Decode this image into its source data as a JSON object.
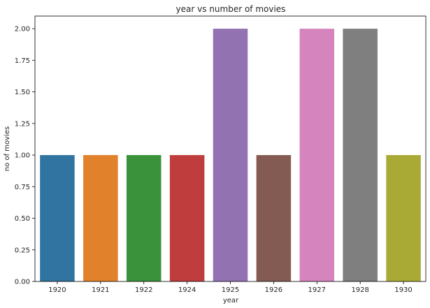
{
  "chart_data": {
    "type": "bar",
    "title": "year vs number of movies",
    "xlabel": "year",
    "ylabel": "no of movies",
    "categories": [
      "1920",
      "1921",
      "1922",
      "1924",
      "1925",
      "1926",
      "1927",
      "1928",
      "1930"
    ],
    "values": [
      1,
      1,
      1,
      1,
      2,
      1,
      2,
      2,
      1
    ],
    "colors": [
      "#3274a1",
      "#e1812c",
      "#3a923a",
      "#c03d3e",
      "#9372b2",
      "#845b53",
      "#d684bd",
      "#7f7f7f",
      "#a9aa35"
    ],
    "ylim": [
      0,
      2.1
    ],
    "yticks": [
      "0.00",
      "0.25",
      "0.50",
      "0.75",
      "1.00",
      "1.25",
      "1.50",
      "1.75",
      "2.00"
    ],
    "grid": false,
    "legend": false
  }
}
